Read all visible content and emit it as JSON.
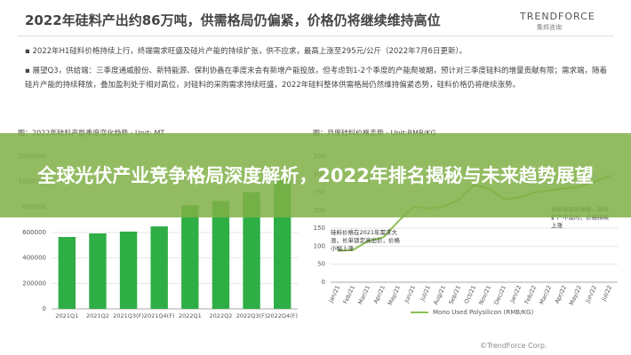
{
  "header": {
    "title": "2022年硅料产出约86万吨，供需格局仍偏紧，价格仍将继续维持高位",
    "logo": "TRENDFORCE",
    "logo_sub": "集邦咨询"
  },
  "bullets": [
    "2022年H1硅料价格持续上行，终端需求旺盛及硅片产能的持续扩张，供不应求，最高上涨至295元/公斤（2022年7月6日更新）。",
    "展望Q3，供给端：三季度通威股份、新特能源、保利协鑫在季度末会有新增产能投放，但考虑到1-2个季度的产能爬坡期，预计对三季度硅料的增量贡献有限；需求端，随着硅片产能的持续释放，叠加盈利处于相对高位，对硅料的采购需求持续旺盛，2022年硅料整体供需格局仍然维持偏紧态势，硅料价格仍将继续涨势。"
  ],
  "banner_title": "全球光伏产业竞争格局深度解析，2022年排名揭秘与未来趋势展望",
  "footer": "©TrendForce Corp.",
  "chart_data": [
    {
      "type": "bar",
      "title": "图：2022年硅料产能季度变化趋势 · Unit: MT",
      "categories": [
        "2021Q1",
        "2021Q2",
        "2021Q3(F)",
        "2021Q4(F)",
        "2022Q1",
        "2022Q2",
        "2022Q3(F)",
        "2022Q4(F)"
      ],
      "values": [
        565000,
        593000,
        607000,
        648000,
        814000,
        848000,
        917000,
        1020000
      ],
      "color": "#2fae45",
      "ylim": [
        0,
        1200000
      ],
      "yticks": [
        0,
        200000,
        400000,
        600000,
        800000,
        1000000,
        1200000
      ],
      "grid": true
    },
    {
      "type": "line",
      "title": "图：月度硅料价格走势 · Unit:RMB/KG",
      "categories": [
        "Jan/21",
        "Feb/21",
        "Mar/21",
        "Apr/21",
        "May/21",
        "Jun/21",
        "Jul/21",
        "Aug/21",
        "Sep/21",
        "Oct/21",
        "Nov/21",
        "Dec/21",
        "Jan/22",
        "Feb/22",
        "Mar/22",
        "Apr/22",
        "May/22",
        "Jun/22",
        "Jul/22"
      ],
      "series": [
        {
          "name": "Mono Used Polysilicon (RMB/KG)",
          "color": "#8cc152",
          "values": [
            87,
            90,
            115,
            125,
            170,
            210,
            205,
            210,
            230,
            270,
            260,
            230,
            235,
            250,
            255,
            260,
            265,
            280,
            295
          ]
        }
      ],
      "ylim": [
        0,
        350
      ],
      "yticks": [
        0,
        50,
        100,
        150,
        200,
        250,
        300,
        350
      ],
      "grid": true,
      "annotations": [
        "硅料价格在2021年需求大涨，长单锁定高出价，价格小幅上涨",
        "供给端紧张收缩，硅料扩产不及时，价格持续上涨"
      ]
    }
  ]
}
